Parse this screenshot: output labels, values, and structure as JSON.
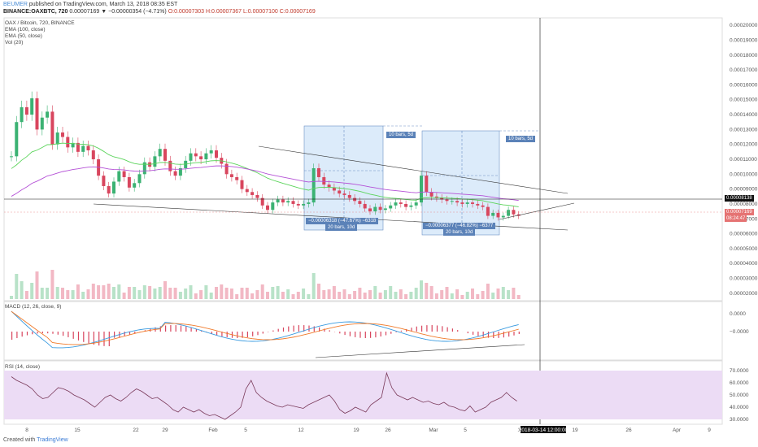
{
  "header": {
    "user": "BEUMER",
    "published": "published on TradingView.com, March 13, 2018 08:35 EST",
    "symbol": "BINANCE:OAXBTC, 720",
    "open": "O:0.00007303",
    "high": "H:0.00007367",
    "low": "L:0.00007100",
    "close": "C:0.00007169",
    "change": "0.00007169 ▼ −0.00000354 (−4.71%)"
  },
  "legend": {
    "title": "OAX / Bitcoin, 720, BINANCE",
    "ema100": "EMA (100, close)",
    "ema50": "EMA (50, close)",
    "vol": "Vol (20)"
  },
  "macd_label": "MACD (12, 26, close, 9)",
  "rsi_label": "RSI (14, close)",
  "footer": {
    "created": "Created with",
    "brand": "TradingView"
  },
  "price_box_current": "0.00008138",
  "price_box_last": "0.00007169",
  "price_box_timer": "08:24:47",
  "measure_1": {
    "top": "10 bars, 5d",
    "bottom1": "−0.00006318 (−47.67%) −6318",
    "bottom2": "20 bars, 10d"
  },
  "measure_2": {
    "top": "10 bars, 5d",
    "bottom1": "−0.00006377 (−46.82%) −6377",
    "bottom2": "20 bars, 10d"
  },
  "time_axis": [
    "8",
    "15",
    "22",
    "29",
    "Feb",
    "5",
    "12",
    "19",
    "26",
    "Mar",
    "5",
    "12",
    "19",
    "26",
    "Apr",
    "9"
  ],
  "date_label": "2018-03-14 12:00:00",
  "colors": {
    "up": "#3bb273",
    "down": "#d8465e",
    "ema50": "#5bd45b",
    "ema100": "#b450d6",
    "macd": "#3a9be0",
    "signal": "#f07a2a",
    "rsi": "#7a3a5a",
    "rsiBand": "#ecdcf5",
    "box": "#dcebfa"
  },
  "chart_data": {
    "type": "candlestick",
    "title": "OAX / Bitcoin, 720, BINANCE",
    "y_axis_ticks": [
      "0.00020000",
      "0.00019000",
      "0.00018000",
      "0.00017000",
      "0.00016000",
      "0.00015000",
      "0.00014000",
      "0.00013000",
      "0.00012000",
      "0.00011000",
      "0.00010000",
      "0.00009000",
      "0.00008000",
      "0.00007000",
      "0.00006000",
      "0.00005000",
      "0.00004000",
      "0.00003000",
      "0.00002000"
    ],
    "ylim": [
      1.5e-05,
      0.000205
    ],
    "close_series": [
      0.000112,
      0.000135,
      0.000145,
      0.00014,
      0.000151,
      0.00013,
      0.000138,
      0.000142,
      0.00012,
      0.000128,
      0.000125,
      0.000118,
      0.000121,
      0.000115,
      0.000119,
      0.000116,
      0.00011,
      9.9e-05,
      9.2e-05,
      8.7e-05,
      9.5e-05,
      0.000102,
      9.8e-05,
      9.1e-05,
      9.4e-05,
      0.0001,
      0.000108,
      0.000105,
      0.000112,
      0.000117,
      0.000109,
      0.000102,
      9.9e-05,
      0.000104,
      0.000109,
      0.000114,
      0.000112,
      0.00011,
      0.000114,
      0.000116,
      0.000111,
      0.000107,
      0.0001,
      9.8e-05,
      9.6e-05,
      9e-05,
      8.8e-05,
      8.6e-05,
      8.4e-05,
      7.9e-05,
      7.6e-05,
      8.1e-05,
      8.3e-05,
      8.1e-05,
      8.2e-05,
      8e-05,
      7.9e-05,
      8e-05,
      8.1e-05,
      0.000104,
      9.8e-05,
      9.3e-05,
      9.1e-05,
      8.9e-05,
      8.7e-05,
      8.6e-05,
      8.4e-05,
      8.2e-05,
      8e-05,
      7.7e-05,
      7.5e-05,
      7.8e-05,
      7.6e-05,
      7.7e-05,
      7.9e-05,
      8.1e-05,
      8e-05,
      7.8e-05,
      7.9e-05,
      8.1e-05,
      9.9e-05,
      8.8e-05,
      8.5e-05,
      8.4e-05,
      8.3e-05,
      8.2e-05,
      8.2e-05,
      8.1e-05,
      8e-05,
      8.1e-05,
      8e-05,
      7.9e-05,
      7.8e-05,
      7.2e-05,
      7.4e-05,
      7.1e-05,
      7.2e-05,
      7.6e-05,
      7.3e-05,
      7.2e-05
    ],
    "macd_ticks": [
      "0.0000",
      "−0.0000"
    ],
    "rsi_ticks": [
      "70.0000",
      "60.0000",
      "50.0000",
      "40.0000",
      "30.0000"
    ],
    "rsi_series": [
      65,
      62,
      60,
      58,
      55,
      50,
      47,
      48,
      52,
      56,
      55,
      53,
      50,
      48,
      46,
      43,
      40,
      44,
      48,
      50,
      47,
      45,
      48,
      52,
      55,
      53,
      50,
      47,
      48,
      45,
      42,
      38,
      36,
      40,
      38,
      36,
      38,
      35,
      33,
      34,
      32,
      30,
      33,
      36,
      40,
      55,
      62,
      52,
      48,
      45,
      43,
      41,
      40,
      42,
      41,
      40,
      39,
      42,
      44,
      46,
      48,
      50,
      45,
      38,
      35,
      37,
      40,
      38,
      36,
      42,
      45,
      48,
      68,
      56,
      50,
      48,
      46,
      48,
      46,
      44,
      45,
      43,
      42,
      44,
      41,
      40,
      38,
      37,
      41,
      36,
      38,
      40,
      44,
      46,
      48,
      52,
      48,
      45
    ]
  }
}
